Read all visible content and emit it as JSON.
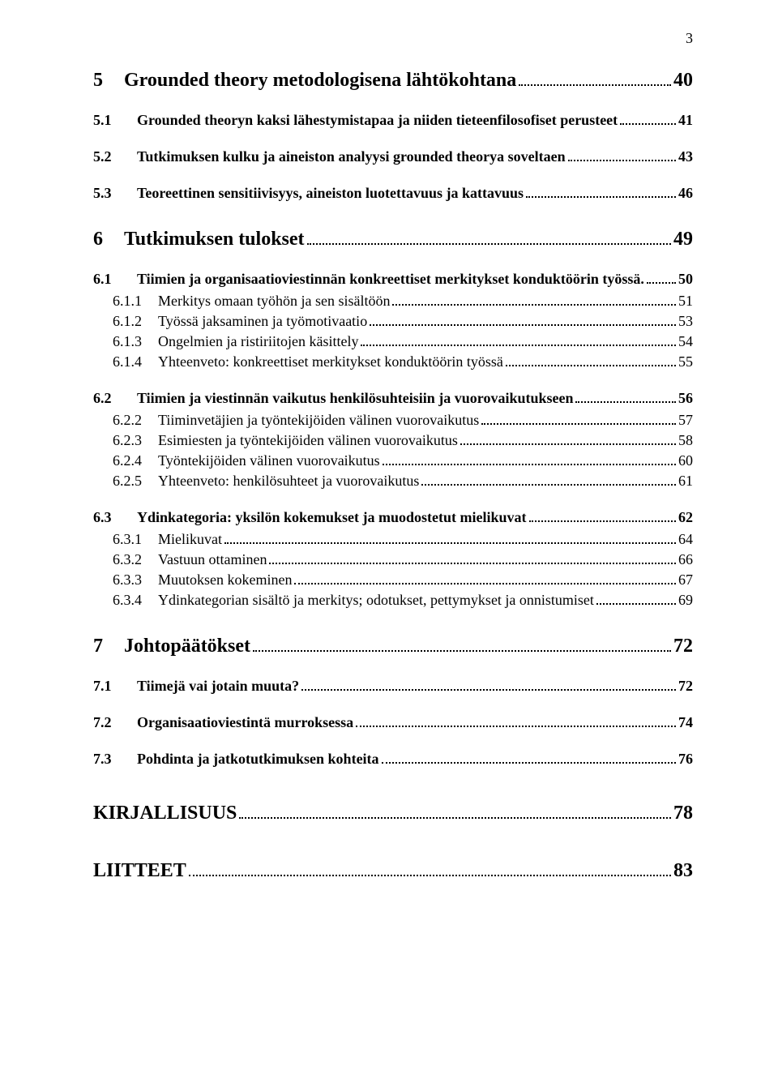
{
  "page_number": "3",
  "entries": [
    {
      "cls": "h1",
      "num": "5",
      "label": "Grounded theory metodologisena lähtökohtana",
      "pg": "40"
    },
    {
      "cls": "h2",
      "num": "5.1",
      "label": "Grounded theoryn kaksi lähestymistapaa ja niiden tieteenfilosofiset perusteet",
      "pg": "41"
    },
    {
      "cls": "h2",
      "num": "5.2",
      "label": "Tutkimuksen kulku ja aineiston analyysi grounded theorya soveltaen",
      "pg": "43"
    },
    {
      "cls": "h2",
      "num": "5.3",
      "label": "Teoreettinen sensitiivisyys, aineiston luotettavuus ja kattavuus",
      "pg": "46"
    },
    {
      "cls": "h1",
      "num": "6",
      "label": "Tutkimuksen tulokset",
      "pg": "49"
    },
    {
      "cls": "h2",
      "num": "6.1",
      "label": "Tiimien ja organisaatioviestinnän konkreettiset merkitykset konduktöörin työssä.",
      "pg": "50"
    },
    {
      "cls": "h3",
      "num": "6.1.1",
      "label": "Merkitys omaan työhön ja sen sisältöön",
      "pg": "51"
    },
    {
      "cls": "h3",
      "num": "6.1.2",
      "label": "Työssä jaksaminen ja työmotivaatio",
      "pg": "53"
    },
    {
      "cls": "h3",
      "num": "6.1.3",
      "label": "Ongelmien ja ristiriitojen käsittely",
      "pg": "54"
    },
    {
      "cls": "h3",
      "num": "6.1.4",
      "label": "Yhteenveto: konkreettiset merkitykset konduktöörin työssä",
      "pg": "55"
    },
    {
      "cls": "h2",
      "num": "6.2",
      "label": "Tiimien ja viestinnän vaikutus henkilösuhteisiin ja vuorovaikutukseen",
      "pg": "56"
    },
    {
      "cls": "h3",
      "num": "6.2.2",
      "label": "Tiiminvetäjien ja työntekijöiden välinen vuorovaikutus",
      "pg": "57"
    },
    {
      "cls": "h3",
      "num": "6.2.3",
      "label": "Esimiesten ja työntekijöiden välinen vuorovaikutus",
      "pg": "58"
    },
    {
      "cls": "h3",
      "num": "6.2.4",
      "label": "Työntekijöiden välinen vuorovaikutus",
      "pg": "60"
    },
    {
      "cls": "h3",
      "num": "6.2.5",
      "label": "Yhteenveto: henkilösuhteet ja vuorovaikutus",
      "pg": "61"
    },
    {
      "cls": "h2",
      "num": "6.3",
      "label": "Ydinkategoria: yksilön kokemukset ja muodostetut mielikuvat",
      "pg": "62"
    },
    {
      "cls": "h3",
      "num": "6.3.1",
      "label": "Mielikuvat",
      "pg": "64"
    },
    {
      "cls": "h3",
      "num": "6.3.2",
      "label": "Vastuun ottaminen",
      "pg": "66"
    },
    {
      "cls": "h3",
      "num": "6.3.3",
      "label": "Muutoksen kokeminen",
      "pg": "67"
    },
    {
      "cls": "h3",
      "num": "6.3.4",
      "label": "Ydinkategorian sisältö ja merkitys; odotukset, pettymykset  ja onnistumiset",
      "pg": "69"
    },
    {
      "cls": "h1",
      "num": "7",
      "label": "Johtopäätökset",
      "pg": "72"
    },
    {
      "cls": "h2",
      "num": "7.1",
      "label": "Tiimejä vai jotain muuta?",
      "pg": "72"
    },
    {
      "cls": "h2",
      "num": "7.2",
      "label": "Organisaatioviestintä murroksessa",
      "pg": "74"
    },
    {
      "cls": "h2",
      "num": "7.3",
      "label": "Pohdinta ja jatkotutkimuksen kohteita",
      "pg": "76"
    },
    {
      "cls": "h0 no-num",
      "num": "",
      "label": "KIRJALLISUUS",
      "pg": "78"
    },
    {
      "cls": "h0 no-num",
      "num": "",
      "label": "LIITTEET",
      "pg": "83"
    }
  ]
}
